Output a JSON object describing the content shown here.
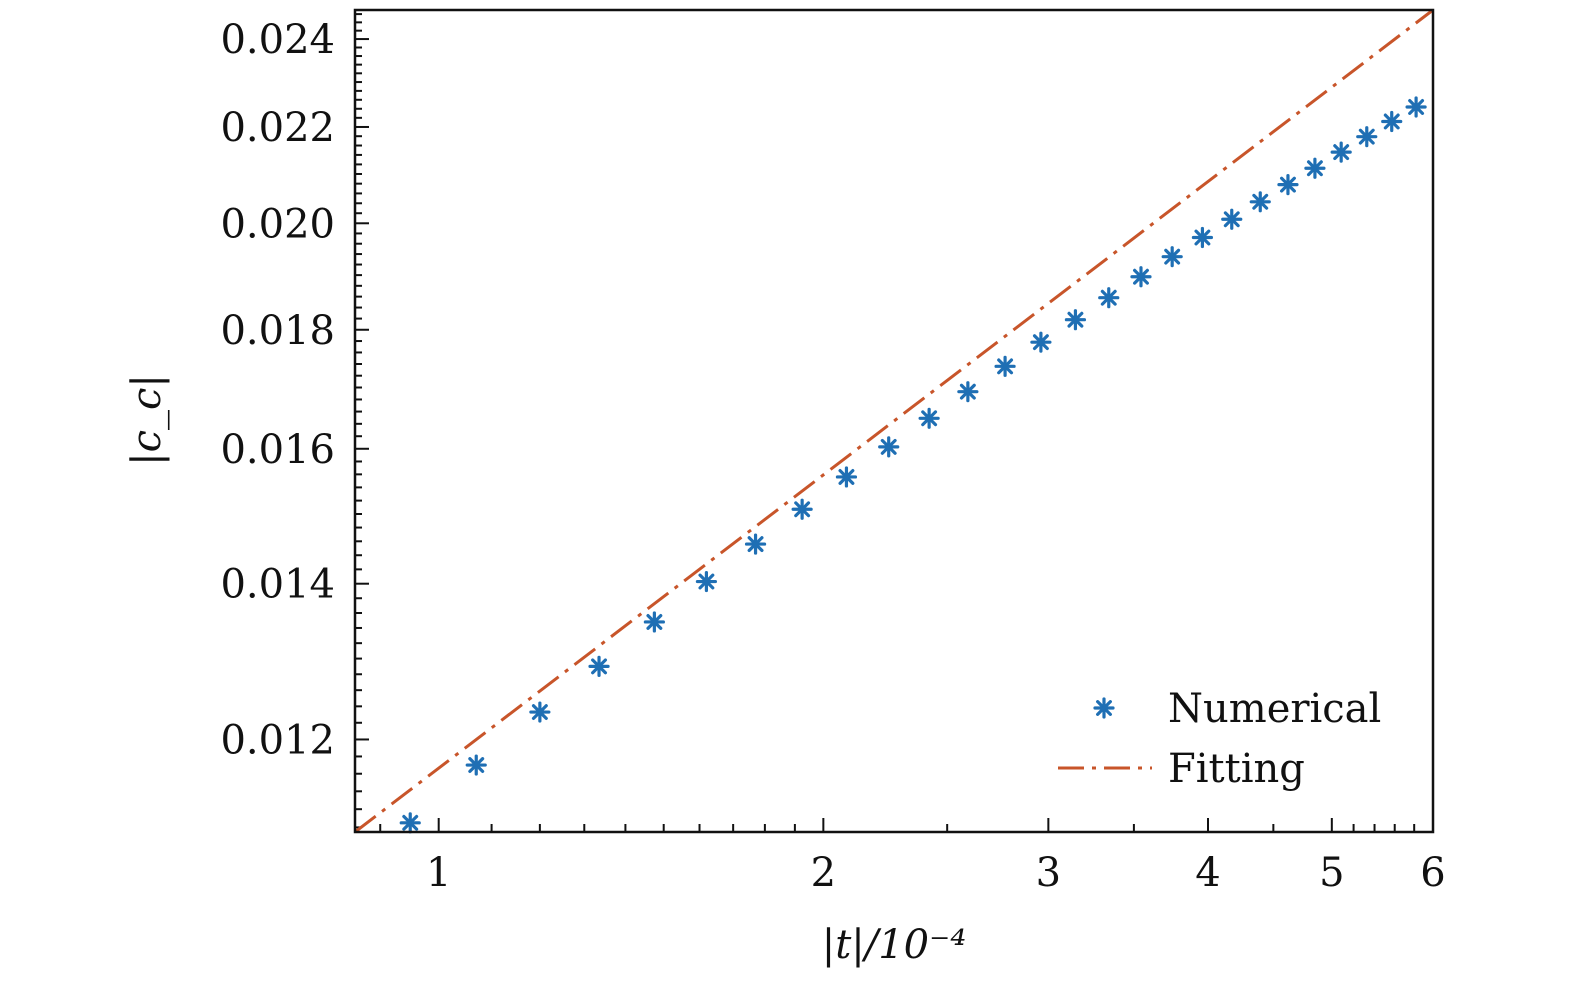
{
  "chart_data": {
    "type": "scatter",
    "title": "",
    "xlabel": "|t|/10⁻⁴",
    "ylabel": "|c_c|",
    "x_scale": "log",
    "y_scale": "log",
    "xlim": [
      0.86,
      6.0
    ],
    "ylim": [
      0.01095,
      0.0247
    ],
    "x_ticks": [
      1,
      2,
      3,
      4,
      5,
      6
    ],
    "x_tick_labels": [
      "1",
      "2",
      "3",
      "4",
      "5",
      "6"
    ],
    "y_ticks": [
      0.012,
      0.014,
      0.016,
      0.018,
      0.02,
      0.022,
      0.024
    ],
    "y_tick_labels": [
      "0.012",
      "0.014",
      "0.016",
      "0.018",
      "0.020",
      "0.022",
      "0.024"
    ],
    "grid": false,
    "legend_position": "bottom-right",
    "series": [
      {
        "name": "Numerical",
        "kind": "markers",
        "marker": "asterisk",
        "color": "#1f6fb4",
        "x": [
          0.95,
          1.07,
          1.2,
          1.335,
          1.475,
          1.62,
          1.77,
          1.925,
          2.085,
          2.25,
          2.42,
          2.595,
          2.775,
          2.96,
          3.15,
          3.345,
          3.545,
          3.75,
          3.96,
          4.175,
          4.395,
          4.62,
          4.85,
          5.085,
          5.325,
          5.57,
          5.82
        ],
        "y": [
          0.01105,
          0.0117,
          0.01233,
          0.0129,
          0.01348,
          0.01403,
          0.01456,
          0.01507,
          0.01556,
          0.01603,
          0.01649,
          0.01693,
          0.01736,
          0.01778,
          0.01818,
          0.01858,
          0.01897,
          0.01935,
          0.01972,
          0.02008,
          0.02043,
          0.02078,
          0.02112,
          0.02146,
          0.02179,
          0.02212,
          0.02244
        ]
      },
      {
        "name": "Fitting",
        "kind": "line",
        "style": "long-dash-dot",
        "color": "#c8552a",
        "x": [
          0.86,
          6.0
        ],
        "y": [
          0.01095,
          0.0247
        ]
      }
    ]
  },
  "colors": {
    "numerical": "#1f6fb4",
    "fitting": "#c8552a",
    "axis": "#111111"
  }
}
